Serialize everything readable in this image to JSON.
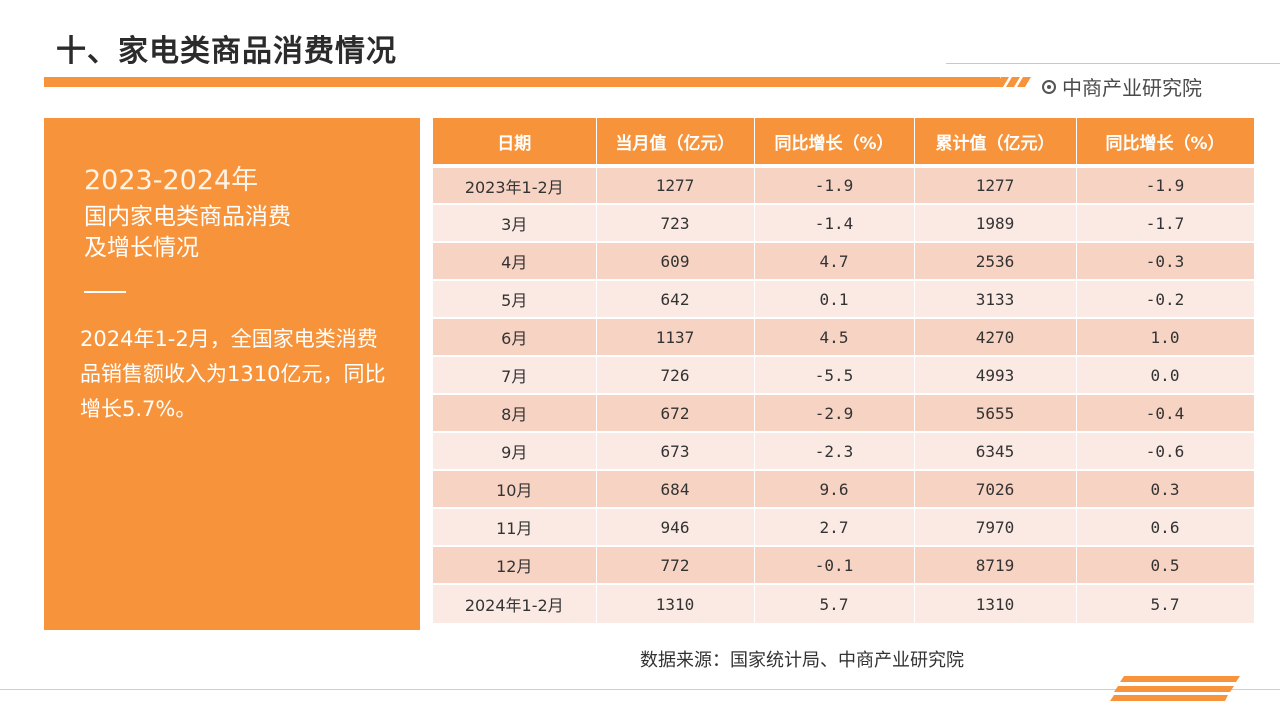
{
  "header": {
    "title": "十、家电类商品消费情况",
    "brand": "中商产业研究院"
  },
  "left_panel": {
    "heading": "2023-2024年",
    "subheading_line1": "国内家电类商品消费",
    "subheading_line2": "及增长情况",
    "body": "2024年1-2月，全国家电类消费品销售额收入为1310亿元，同比增长5.7%。"
  },
  "table": {
    "headers": [
      "日期",
      "当月值（亿元）",
      "同比增长（%）",
      "累计值（亿元）",
      "同比增长（%）"
    ],
    "rows": [
      [
        "2023年1-2月",
        "1277",
        "-1.9",
        "1277",
        "-1.9"
      ],
      [
        "3月",
        "723",
        "-1.4",
        "1989",
        "-1.7"
      ],
      [
        "4月",
        "609",
        "4.7",
        "2536",
        "-0.3"
      ],
      [
        "5月",
        "642",
        "0.1",
        "3133",
        "-0.2"
      ],
      [
        "6月",
        "1137",
        "4.5",
        "4270",
        "1.0"
      ],
      [
        "7月",
        "726",
        "-5.5",
        "4993",
        "0.0"
      ],
      [
        "8月",
        "672",
        "-2.9",
        "5655",
        "-0.4"
      ],
      [
        "9月",
        "673",
        "-2.3",
        "6345",
        "-0.6"
      ],
      [
        "10月",
        "684",
        "9.6",
        "7026",
        "0.3"
      ],
      [
        "11月",
        "946",
        "2.7",
        "7970",
        "0.6"
      ],
      [
        "12月",
        "772",
        "-0.1",
        "8719",
        "0.5"
      ],
      [
        "2024年1-2月",
        "1310",
        "5.7",
        "1310",
        "5.7"
      ]
    ]
  },
  "source": "数据来源：国家统计局、中商产业研究院",
  "colors": {
    "accent": "#F7943B",
    "row_odd": "#F7D3C3",
    "row_even": "#FBEAE3"
  }
}
